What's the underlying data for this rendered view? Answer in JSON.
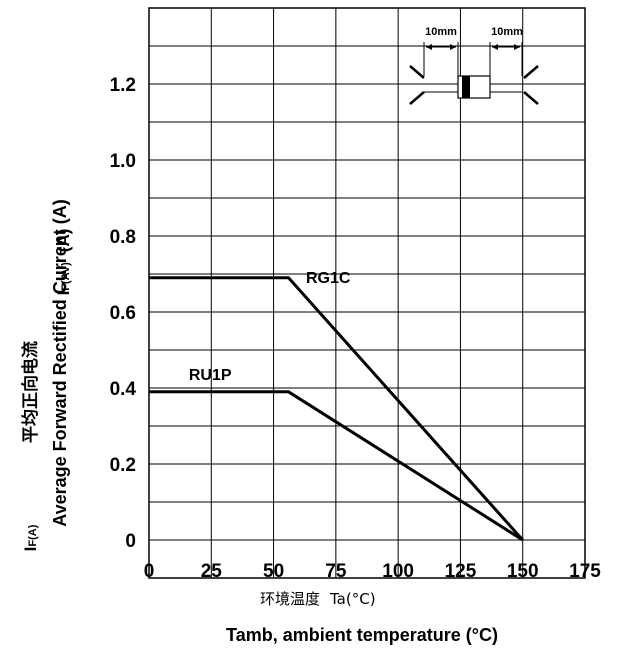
{
  "chart_data": {
    "type": "line",
    "xlabel_cn": "环境温度",
    "xlabel_cn_symbol": "Ta(°C)",
    "xlabel": "Tamb, ambient temperature (°C)",
    "ylabel": "Average Forward Rectified Current (A)",
    "ylabel_cn": "平均正向电流",
    "ylabel_symbol_main": "I",
    "ylabel_symbol_sub": "F(AV)",
    "ylabel_symbol_unit": "(A)",
    "ylabel_symbol2_main": "I",
    "ylabel_symbol2_sub": "F(A)",
    "xlim": [
      0,
      175
    ],
    "ylim": [
      -0.1,
      1.4
    ],
    "xticks": [
      "0",
      "25",
      "50",
      "75",
      "100",
      "125",
      "150",
      "175"
    ],
    "yticks": [
      "0",
      "0.2",
      "0.4",
      "0.6",
      "0.8",
      "1.0",
      "1.2"
    ],
    "grid": true,
    "series": [
      {
        "name": "RG1C",
        "x": [
          0,
          56,
          150
        ],
        "y": [
          0.69,
          0.69,
          0
        ]
      },
      {
        "name": "RU1P",
        "x": [
          0,
          56,
          150
        ],
        "y": [
          0.39,
          0.39,
          0
        ]
      }
    ],
    "inset": {
      "lead_left": "10mm",
      "lead_right": "10mm"
    }
  }
}
